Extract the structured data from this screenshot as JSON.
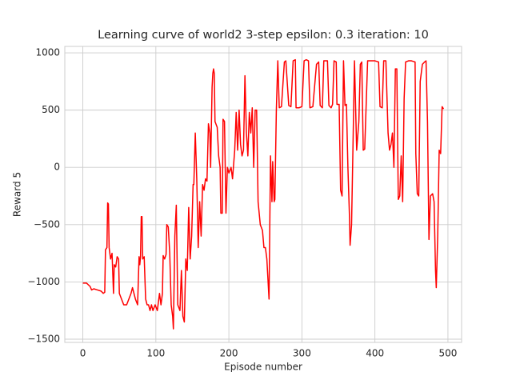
{
  "chart_data": {
    "type": "line",
    "title": "Learning curve of world2 3-step epsilon: 0.3 iteration: 10",
    "xlabel": "Episode number",
    "ylabel": "Reward 5",
    "color": "#ff0000",
    "grid": true,
    "xlim": [
      -24.7,
      518.7
    ],
    "ylim": [
      -1528,
      1056
    ],
    "xticks": [
      0,
      100,
      200,
      300,
      400,
      500
    ],
    "yticks": [
      {
        "value": -1500,
        "label": "−1500"
      },
      {
        "value": -1000,
        "label": "−1000"
      },
      {
        "value": -500,
        "label": "−500"
      },
      0,
      500,
      1000
    ],
    "x": [
      0,
      5,
      10,
      12,
      15,
      20,
      25,
      28,
      30,
      31,
      33,
      34,
      35,
      36,
      38,
      40,
      42,
      43,
      45,
      47,
      49,
      50,
      53,
      56,
      60,
      63,
      66,
      68,
      70,
      72,
      75,
      77,
      78,
      79,
      80,
      81,
      82,
      84,
      86,
      88,
      90,
      92,
      94,
      96,
      99,
      102,
      105,
      107,
      109,
      110,
      112,
      114,
      115,
      117,
      119,
      121,
      123,
      124,
      126,
      128,
      130,
      133,
      135,
      137,
      139,
      141,
      143,
      145,
      147,
      149,
      151,
      152,
      154,
      156,
      158,
      160,
      162,
      164,
      166,
      168,
      170,
      172,
      174,
      175,
      177,
      178,
      179,
      180,
      181,
      184,
      186,
      188,
      189,
      191,
      192,
      194,
      196,
      198,
      200,
      203,
      205,
      208,
      210,
      212,
      214,
      216,
      218,
      220,
      222,
      224,
      226,
      228,
      230,
      232,
      234,
      236,
      238,
      240,
      243,
      246,
      248,
      250,
      252,
      255,
      257,
      259,
      260,
      262,
      263,
      265,
      267,
      269,
      272,
      276,
      278,
      282,
      285,
      288,
      291,
      292,
      296,
      300,
      303,
      306,
      309,
      311,
      315,
      320,
      323,
      325,
      328,
      330,
      335,
      337,
      340,
      342,
      344,
      347,
      348,
      351,
      353,
      355,
      357,
      359,
      361,
      363,
      365,
      366,
      368,
      370,
      372,
      375,
      378,
      380,
      382,
      384,
      386,
      390,
      395,
      400,
      405,
      407,
      410,
      412,
      415,
      418,
      420,
      422,
      424,
      426,
      428,
      430,
      432,
      434,
      436,
      438,
      440,
      442,
      446,
      450,
      455,
      456,
      458,
      460,
      462,
      465,
      468,
      470,
      472,
      474,
      476,
      479,
      481,
      483,
      484,
      486,
      488,
      490,
      492,
      494
    ],
    "values": [
      -1010,
      -1010,
      -1040,
      -1070,
      -1060,
      -1070,
      -1080,
      -1100,
      -1090,
      -720,
      -700,
      -310,
      -320,
      -700,
      -800,
      -750,
      -1100,
      -850,
      -870,
      -780,
      -800,
      -1100,
      -1150,
      -1200,
      -1200,
      -1150,
      -1100,
      -1050,
      -1100,
      -1150,
      -1200,
      -780,
      -850,
      -780,
      -430,
      -430,
      -800,
      -780,
      -1150,
      -1200,
      -1200,
      -1250,
      -1200,
      -1250,
      -1200,
      -1250,
      -1100,
      -1200,
      -1100,
      -770,
      -800,
      -760,
      -500,
      -520,
      -750,
      -1200,
      -1300,
      -1410,
      -600,
      -330,
      -1200,
      -1250,
      -900,
      -1300,
      -1350,
      -800,
      -900,
      -350,
      -800,
      -600,
      -150,
      -150,
      300,
      -100,
      -700,
      -300,
      -600,
      -150,
      -200,
      -100,
      -120,
      380,
      300,
      0,
      700,
      820,
      860,
      820,
      400,
      350,
      100,
      0,
      -400,
      -400,
      420,
      400,
      -400,
      0,
      -50,
      0,
      -100,
      150,
      480,
      150,
      500,
      200,
      100,
      150,
      800,
      300,
      100,
      480,
      300,
      520,
      0,
      500,
      500,
      -300,
      -500,
      -550,
      -700,
      -700,
      -800,
      -1150,
      100,
      -300,
      50,
      -300,
      -280,
      500,
      930,
      520,
      530,
      920,
      930,
      540,
      530,
      930,
      940,
      520,
      520,
      530,
      930,
      940,
      930,
      520,
      530,
      900,
      920,
      540,
      520,
      930,
      930,
      540,
      520,
      550,
      930,
      920,
      550,
      550,
      -200,
      -250,
      930,
      540,
      550,
      0,
      -400,
      -680,
      -500,
      200,
      930,
      150,
      400,
      900,
      920,
      150,
      160,
      930,
      930,
      930,
      920,
      530,
      520,
      930,
      930,
      300,
      150,
      200,
      300,
      0,
      860,
      860,
      -280,
      -250,
      100,
      -300,
      600,
      920,
      930,
      930,
      920,
      120,
      -230,
      -250,
      750,
      900,
      920,
      930,
      400,
      -630,
      -250,
      -230,
      -300,
      -900,
      -1050,
      -600,
      150,
      120,
      530,
      510
    ]
  }
}
